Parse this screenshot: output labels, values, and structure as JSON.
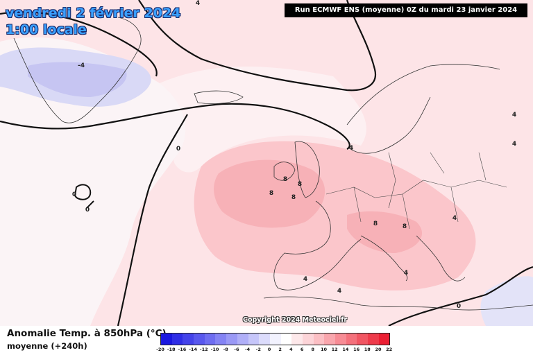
{
  "header": {
    "date": "vendredi 2 février 2024",
    "time": "1:00 locale",
    "run": "Run ECMWF ENS (moyenne) 0Z du mardi 23 janvier 2024"
  },
  "copyright": "Copyright 2024 Meteociel.fr",
  "legend": {
    "title": "Anomalie Temp. à 850hPa (°C)",
    "subtitle": "moyenne   (+240h)",
    "ticks": [
      "-20",
      "-18",
      "-16",
      "-14",
      "-12",
      "-10",
      "-8",
      "-6",
      "-4",
      "-2",
      "0",
      "2",
      "4",
      "6",
      "8",
      "10",
      "12",
      "14",
      "16",
      "18",
      "20",
      "22"
    ],
    "colors": [
      "#1a18e0",
      "#2f2ee6",
      "#4443ea",
      "#5958ee",
      "#6e6df1",
      "#8483f4",
      "#9a99f6",
      "#b0aff8",
      "#c6c6fa",
      "#dcdcfc",
      "#f2f2fe",
      "#ffffff",
      "#fde8ea",
      "#fcd4d8",
      "#fbbfc4",
      "#f9a6ad",
      "#f78c95",
      "#f4717c",
      "#f15663",
      "#ee3b4b",
      "#eb1f33"
    ]
  },
  "contour_labels": [
    {
      "text": "-4",
      "id": "label-greenland-neg4"
    },
    {
      "text": "0",
      "id": "label-atlantic-0a"
    },
    {
      "text": "0",
      "id": "label-atlantic-0b"
    },
    {
      "text": "0",
      "id": "label-atlantic-0c"
    },
    {
      "text": "4",
      "id": "label-north-sea-4"
    },
    {
      "text": "8",
      "id": "label-ireland-8a"
    },
    {
      "text": "8",
      "id": "label-ireland-8b"
    },
    {
      "text": "8",
      "id": "label-ireland-8c"
    },
    {
      "text": "8",
      "id": "label-england-8"
    },
    {
      "text": "8",
      "id": "label-alps-8"
    },
    {
      "text": "8",
      "id": "label-balkans-8"
    },
    {
      "text": "4",
      "id": "label-romania-4"
    },
    {
      "text": "4",
      "id": "label-iberia-4"
    },
    {
      "text": "4",
      "id": "label-med-4"
    },
    {
      "text": "4",
      "id": "label-greece-4"
    },
    {
      "text": "0",
      "id": "label-africa-0"
    },
    {
      "text": "4",
      "id": "label-russia-4a"
    },
    {
      "text": "4",
      "id": "label-russia-4b"
    },
    {
      "text": "4",
      "id": "label-top-4"
    }
  ],
  "colors": {
    "title_text": "#3aa0ff",
    "cold_anomaly": "#d8d8fa",
    "warm_anomaly": "#fcd8dc",
    "strong_warm": "#f6a9b0"
  }
}
